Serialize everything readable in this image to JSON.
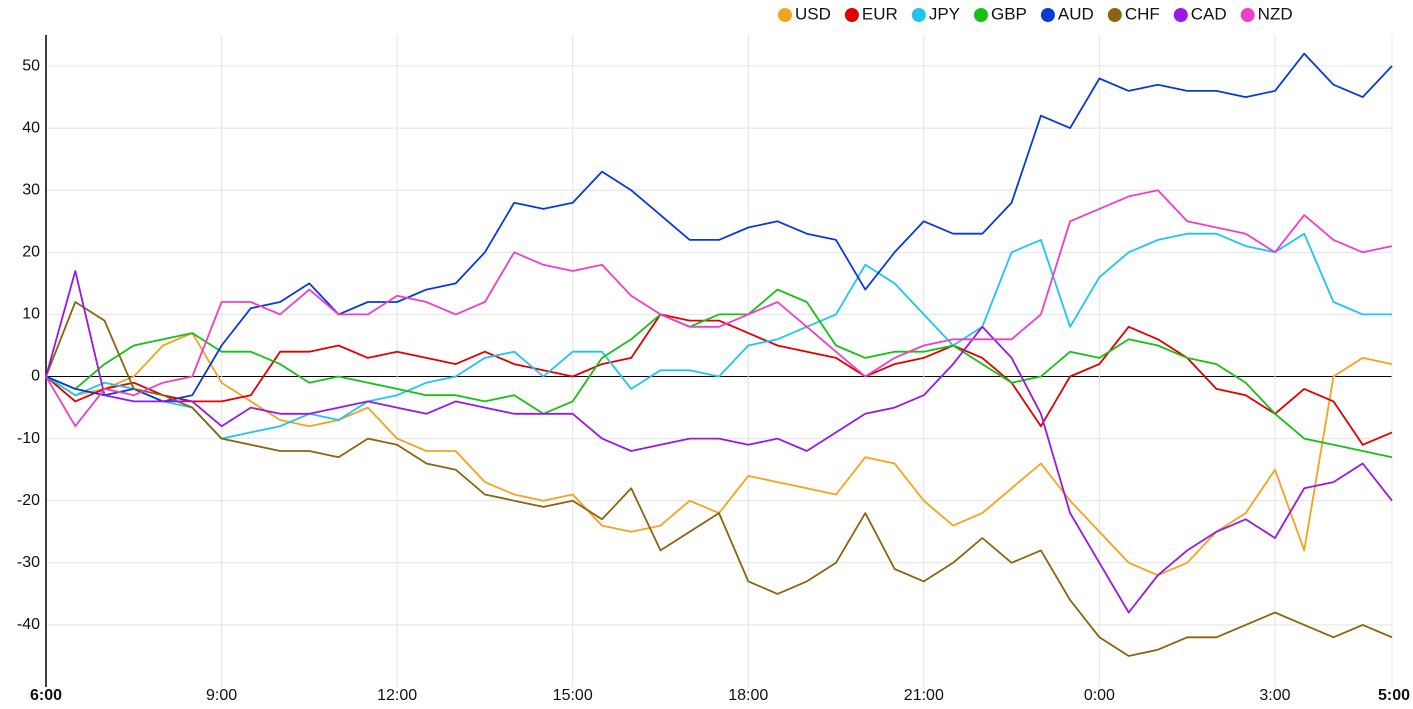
{
  "chart_data": {
    "type": "line",
    "categories": [
      "6:00",
      null,
      null,
      null,
      null,
      null,
      "9:00",
      null,
      null,
      null,
      null,
      null,
      "12:00",
      null,
      null,
      null,
      null,
      null,
      "15:00",
      null,
      null,
      null,
      null,
      null,
      "18:00",
      null,
      null,
      null,
      null,
      null,
      "21:00",
      null,
      null,
      null,
      null,
      null,
      "0:00",
      null,
      null,
      null,
      null,
      null,
      "3:00",
      null,
      null,
      null,
      "5:00"
    ],
    "ylim": [
      -50,
      55
    ],
    "yticks": [
      -40,
      -30,
      -20,
      -10,
      0,
      10,
      20,
      30,
      40,
      50
    ],
    "grid": true,
    "legend": "top-right",
    "series": [
      {
        "name": "USD",
        "color": "#f5a31c",
        "values": [
          0,
          -3,
          -2,
          0,
          5,
          7,
          -1,
          -4,
          -7,
          -8,
          -7,
          -5,
          -10,
          -12,
          -12,
          -17,
          -19,
          -20,
          -19,
          -24,
          -25,
          -24,
          -20,
          -22,
          -16,
          -17,
          -18,
          -19,
          -13,
          -14,
          -20,
          -24,
          -22,
          -18,
          -14,
          -20,
          -25,
          -30,
          -32,
          -30,
          -25,
          -22,
          -15,
          -28,
          0,
          3,
          2
        ]
      },
      {
        "name": "EUR",
        "color": "#e00000",
        "values": [
          0,
          -4,
          -2,
          -1,
          -3,
          -4,
          -4,
          -3,
          4,
          4,
          5,
          3,
          4,
          3,
          2,
          4,
          2,
          1,
          0,
          2,
          3,
          10,
          9,
          9,
          7,
          5,
          4,
          3,
          0,
          2,
          3,
          5,
          3,
          -1,
          -8,
          0,
          2,
          8,
          6,
          3,
          -2,
          -3,
          -6,
          -2,
          -4,
          -11,
          -9
        ]
      },
      {
        "name": "JPY",
        "color": "#1ec6ee",
        "values": [
          0,
          -3,
          -1,
          -2,
          -4,
          -5,
          -10,
          -9,
          -8,
          -6,
          -7,
          -4,
          -3,
          -1,
          0,
          3,
          4,
          0,
          4,
          4,
          -2,
          1,
          1,
          0,
          5,
          6,
          8,
          10,
          18,
          15,
          10,
          5,
          8,
          20,
          22,
          8,
          16,
          20,
          22,
          23,
          23,
          21,
          20,
          23,
          12,
          10,
          10
        ]
      },
      {
        "name": "GBP",
        "color": "#16c016",
        "values": [
          0,
          -2,
          2,
          5,
          6,
          7,
          4,
          4,
          2,
          -1,
          0,
          -1,
          -2,
          -3,
          -3,
          -4,
          -3,
          -6,
          -4,
          3,
          6,
          10,
          8,
          10,
          10,
          14,
          12,
          5,
          3,
          4,
          4,
          5,
          2,
          -1,
          0,
          4,
          3,
          6,
          5,
          3,
          2,
          -1,
          -6,
          -10,
          -11,
          -12,
          -13
        ]
      },
      {
        "name": "AUD",
        "color": "#0a3ad6",
        "values": [
          0,
          -2,
          -3,
          -2,
          -4,
          -3,
          5,
          11,
          12,
          15,
          10,
          12,
          12,
          14,
          15,
          20,
          28,
          27,
          28,
          33,
          30,
          26,
          22,
          22,
          24,
          25,
          23,
          22,
          14,
          20,
          25,
          23,
          23,
          28,
          42,
          40,
          48,
          46,
          47,
          46,
          46,
          45,
          46,
          52,
          47,
          45,
          50
        ]
      },
      {
        "name": "CHF",
        "color": "#8b640e",
        "values": [
          0,
          12,
          9,
          -2,
          -3,
          -5,
          -10,
          -11,
          -12,
          -12,
          -13,
          -10,
          -11,
          -14,
          -15,
          -19,
          -20,
          -21,
          -20,
          -23,
          -18,
          -28,
          -25,
          -22,
          -33,
          -35,
          -33,
          -30,
          -22,
          -31,
          -33,
          -30,
          -26,
          -30,
          -28,
          -36,
          -42,
          -45,
          -44,
          -42,
          -42,
          -40,
          -38,
          -40,
          -42,
          -40,
          -42
        ]
      },
      {
        "name": "CAD",
        "color": "#9818e6",
        "values": [
          0,
          17,
          -3,
          -4,
          -4,
          -4,
          -8,
          -5,
          -6,
          -6,
          -5,
          -4,
          -5,
          -6,
          -4,
          -5,
          -6,
          -6,
          -6,
          -10,
          -12,
          -11,
          -10,
          -10,
          -11,
          -10,
          -12,
          -9,
          -6,
          -5,
          -3,
          2,
          8,
          3,
          -6,
          -22,
          -30,
          -38,
          -32,
          -28,
          -25,
          -23,
          -26,
          -18,
          -17,
          -14,
          -20
        ]
      },
      {
        "name": "NZD",
        "color": "#ee3fc8",
        "values": [
          0,
          -8,
          -2,
          -3,
          -1,
          0,
          12,
          12,
          10,
          14,
          10,
          10,
          13,
          12,
          10,
          12,
          20,
          18,
          17,
          18,
          13,
          10,
          8,
          8,
          10,
          12,
          8,
          4,
          0,
          3,
          5,
          6,
          6,
          6,
          10,
          25,
          27,
          29,
          30,
          25,
          24,
          23,
          20,
          26,
          22,
          20,
          21
        ]
      }
    ]
  }
}
